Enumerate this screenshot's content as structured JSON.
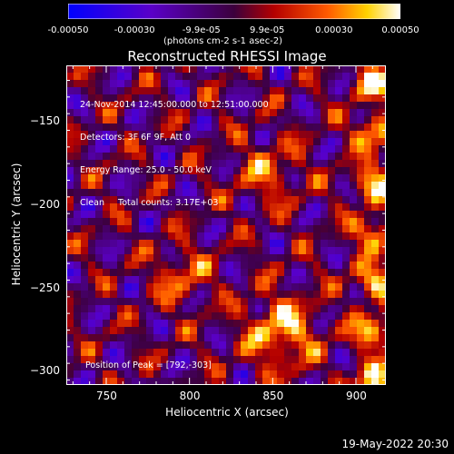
{
  "chart_data": {
    "type": "heatmap",
    "title": "Reconstructed RHESSI Image",
    "xlabel": "Heliocentric X (arcsec)",
    "ylabel": "Heliocentric Y (arcsec)",
    "xlim": [
      726,
      918
    ],
    "ylim": [
      -308,
      -116
    ],
    "x_ticks": [
      750,
      800,
      850,
      900
    ],
    "y_ticks": [
      -300,
      -250,
      -200,
      -150
    ],
    "colorbar": {
      "range": [
        -0.0005,
        0.0005
      ],
      "ticks": [
        "-0.00050",
        "-0.00030",
        "-9.9e-05",
        "9.9e-05",
        "0.00030",
        "0.00050"
      ],
      "tick_values": [
        -0.0005,
        -0.0003,
        -9.9e-05,
        9.9e-05,
        0.0003,
        0.0005
      ],
      "units": "(photons cm-2 s-1 asec-2)",
      "colormap": "blue-purple-red-yellow-white"
    },
    "annotations": [
      "24-Nov-2014 12:45:00.000 to 12:51:00.000",
      "Detectors: 3F 6F 9F, Att 0",
      "Energy Range: 25.0 - 50.0 keV",
      "Clean     Total counts: 3.17E+03"
    ],
    "peak_text": "Position of Peak = [792,-303]",
    "peak": [
      792,
      -303
    ],
    "grid": false
  },
  "footer": {
    "date": "19-May-2022 20:30"
  }
}
